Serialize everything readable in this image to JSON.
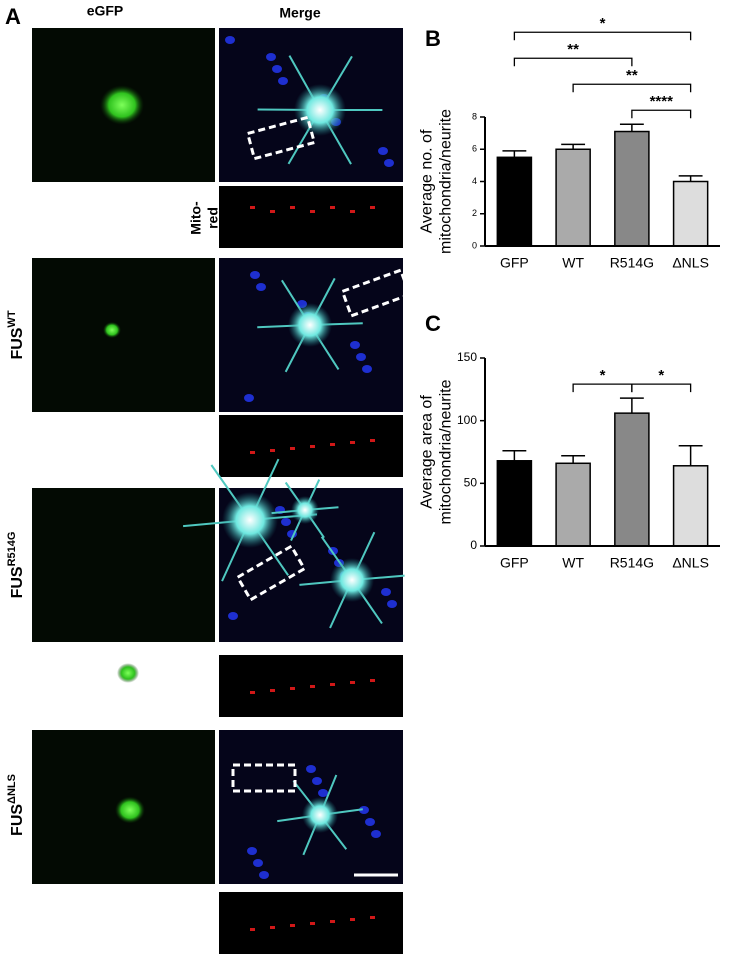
{
  "figure": {
    "panel_label": "A",
    "columns": [
      "eGFP",
      "Merge"
    ],
    "mito_label": [
      "Mito-",
      "red"
    ],
    "rows": [
      {
        "name": "FUS",
        "sup": "WT"
      },
      {
        "name": "FUS",
        "sup": "R514G"
      },
      {
        "name": "FUS",
        "sup": "ΔNLS"
      }
    ]
  },
  "chart_data": [
    {
      "type": "bar",
      "panel_label": "B",
      "ylabel": [
        "Average no. of",
        "mitochondria/neurite"
      ],
      "categories": [
        "GFP",
        "WT",
        "R514G",
        "ΔNLS"
      ],
      "values": [
        5.5,
        6.0,
        7.1,
        4.0
      ],
      "errors": [
        0.4,
        0.3,
        0.45,
        0.35
      ],
      "colors": [
        "#000000",
        "#aaaaaa",
        "#888888",
        "#dddddd"
      ],
      "ylim": [
        0,
        8
      ],
      "yticks": [
        0,
        2,
        4,
        6,
        8
      ],
      "annotations": [
        {
          "label": "*",
          "from": 0,
          "to": 3
        },
        {
          "label": "**",
          "from": 1,
          "to": 3
        },
        {
          "label": "**",
          "from": 0,
          "to": 2
        },
        {
          "label": "****",
          "from": 2,
          "to": 3
        }
      ]
    },
    {
      "type": "bar",
      "panel_label": "C",
      "ylabel": [
        "Average area of",
        "mitochondria/neurite"
      ],
      "categories": [
        "GFP",
        "WT",
        "R514G",
        "ΔNLS"
      ],
      "values": [
        68,
        66,
        106,
        64
      ],
      "errors": [
        8,
        6,
        12,
        16
      ],
      "colors": [
        "#000000",
        "#aaaaaa",
        "#888888",
        "#dddddd"
      ],
      "ylim": [
        0,
        150
      ],
      "yticks": [
        0,
        50,
        100,
        150
      ],
      "annotations": [
        {
          "label": "*",
          "from": 1,
          "to": 2
        },
        {
          "label": "*",
          "from": 2,
          "to": 3
        }
      ]
    }
  ]
}
